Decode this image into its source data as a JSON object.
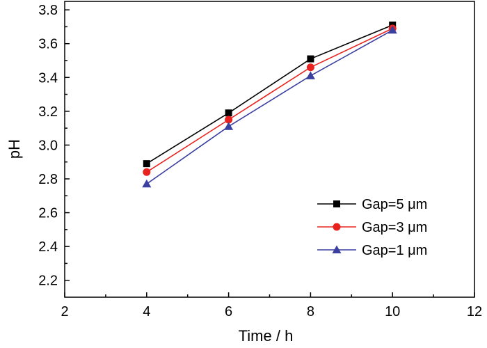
{
  "chart_data": {
    "type": "line",
    "title": "",
    "xlabel": "Time / h",
    "ylabel": "pH",
    "xlim": [
      2,
      12
    ],
    "ylim": [
      2.1,
      3.85
    ],
    "x_ticks": [
      2,
      4,
      6,
      8,
      10,
      12
    ],
    "x_tick_labels": [
      "2",
      "4",
      "6",
      "8",
      "10",
      "12"
    ],
    "y_ticks": [
      2.2,
      2.4,
      2.6,
      2.8,
      3.0,
      3.2,
      3.4,
      3.6,
      3.8
    ],
    "y_tick_labels": [
      "2.2",
      "2.4",
      "2.6",
      "2.8",
      "3.0",
      "3.2",
      "3.4",
      "3.6",
      "3.8"
    ],
    "grid": false,
    "legend_position": "bottom-right",
    "x": [
      4,
      6,
      8,
      10
    ],
    "series": [
      {
        "name": "Gap=5 μm",
        "values": [
          2.89,
          3.19,
          3.51,
          3.71
        ],
        "color": "#000000",
        "marker": "square"
      },
      {
        "name": "Gap=3 μm",
        "values": [
          2.84,
          3.15,
          3.46,
          3.69
        ],
        "color": "#e8231f",
        "marker": "circle"
      },
      {
        "name": "Gap=1 μm",
        "values": [
          2.77,
          3.11,
          3.41,
          3.68
        ],
        "color": "#3a3fa0",
        "marker": "triangle"
      }
    ]
  }
}
